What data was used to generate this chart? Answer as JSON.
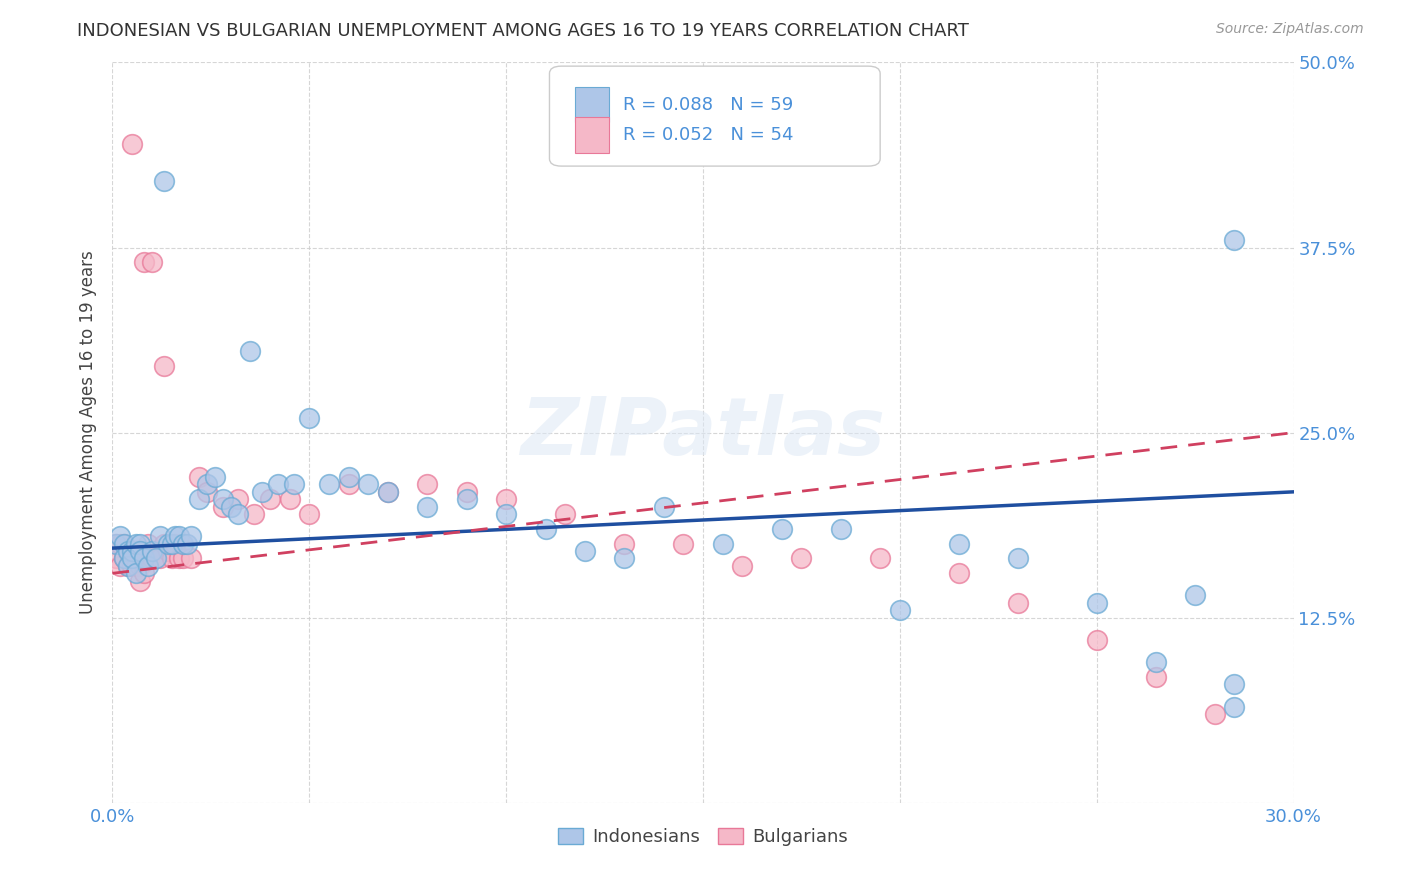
{
  "title": "INDONESIAN VS BULGARIAN UNEMPLOYMENT AMONG AGES 16 TO 19 YEARS CORRELATION CHART",
  "source": "Source: ZipAtlas.com",
  "ylabel": "Unemployment Among Ages 16 to 19 years",
  "xlim": [
    0.0,
    0.3
  ],
  "ylim": [
    0.0,
    0.5
  ],
  "xticks": [
    0.0,
    0.05,
    0.1,
    0.15,
    0.2,
    0.25,
    0.3
  ],
  "xtick_labels": [
    "0.0%",
    "",
    "",
    "",
    "",
    "",
    "30.0%"
  ],
  "yticks": [
    0.0,
    0.125,
    0.25,
    0.375,
    0.5
  ],
  "ytick_labels": [
    "",
    "12.5%",
    "25.0%",
    "37.5%",
    "50.0%"
  ],
  "indonesian_color": "#aec6e8",
  "indonesian_edge": "#6aaad4",
  "bulgarian_color": "#f5b8c8",
  "bulgarian_edge": "#e87898",
  "indonesian_line_color": "#1f4fa0",
  "bulgarian_line_color": "#d04060",
  "tick_label_color": "#4a90d9",
  "grid_color": "#cccccc",
  "legend_r_indo": "0.088",
  "legend_n_indo": "59",
  "legend_r_bulg": "0.052",
  "legend_n_bulg": "54",
  "indo_line_start_y": 0.172,
  "indo_line_end_y": 0.21,
  "bulg_line_start_y": 0.155,
  "bulg_line_end_y": 0.25,
  "indo_x": [
    0.001,
    0.002,
    0.003,
    0.003,
    0.004,
    0.004,
    0.005,
    0.005,
    0.006,
    0.006,
    0.007,
    0.007,
    0.008,
    0.009,
    0.01,
    0.011,
    0.012,
    0.013,
    0.014,
    0.015,
    0.016,
    0.017,
    0.018,
    0.019,
    0.02,
    0.022,
    0.024,
    0.026,
    0.028,
    0.03,
    0.032,
    0.035,
    0.038,
    0.042,
    0.046,
    0.05,
    0.055,
    0.06,
    0.065,
    0.07,
    0.08,
    0.09,
    0.1,
    0.11,
    0.12,
    0.13,
    0.14,
    0.155,
    0.17,
    0.185,
    0.2,
    0.215,
    0.23,
    0.25,
    0.265,
    0.275,
    0.285,
    0.285,
    0.285
  ],
  "indo_y": [
    0.175,
    0.18,
    0.175,
    0.165,
    0.17,
    0.16,
    0.17,
    0.165,
    0.175,
    0.155,
    0.175,
    0.17,
    0.165,
    0.16,
    0.17,
    0.165,
    0.18,
    0.42,
    0.175,
    0.175,
    0.18,
    0.18,
    0.175,
    0.175,
    0.18,
    0.205,
    0.215,
    0.22,
    0.205,
    0.2,
    0.195,
    0.305,
    0.21,
    0.215,
    0.215,
    0.26,
    0.215,
    0.22,
    0.215,
    0.21,
    0.2,
    0.205,
    0.195,
    0.185,
    0.17,
    0.165,
    0.2,
    0.175,
    0.185,
    0.185,
    0.13,
    0.175,
    0.165,
    0.135,
    0.095,
    0.14,
    0.38,
    0.08,
    0.065
  ],
  "bulg_x": [
    0.001,
    0.001,
    0.002,
    0.002,
    0.003,
    0.003,
    0.004,
    0.004,
    0.005,
    0.005,
    0.006,
    0.006,
    0.007,
    0.007,
    0.008,
    0.009,
    0.01,
    0.011,
    0.012,
    0.013,
    0.014,
    0.015,
    0.016,
    0.017,
    0.018,
    0.02,
    0.022,
    0.024,
    0.028,
    0.032,
    0.036,
    0.04,
    0.045,
    0.05,
    0.06,
    0.07,
    0.08,
    0.09,
    0.1,
    0.115,
    0.13,
    0.145,
    0.16,
    0.175,
    0.195,
    0.215,
    0.23,
    0.25,
    0.265,
    0.28,
    0.005,
    0.008,
    0.01,
    0.013
  ],
  "bulg_y": [
    0.175,
    0.165,
    0.175,
    0.16,
    0.175,
    0.165,
    0.17,
    0.16,
    0.16,
    0.165,
    0.16,
    0.17,
    0.16,
    0.15,
    0.155,
    0.175,
    0.165,
    0.165,
    0.165,
    0.175,
    0.17,
    0.165,
    0.175,
    0.165,
    0.165,
    0.165,
    0.22,
    0.21,
    0.2,
    0.205,
    0.195,
    0.205,
    0.205,
    0.195,
    0.215,
    0.21,
    0.215,
    0.21,
    0.205,
    0.195,
    0.175,
    0.175,
    0.16,
    0.165,
    0.165,
    0.155,
    0.135,
    0.11,
    0.085,
    0.06,
    0.445,
    0.365,
    0.365,
    0.295
  ]
}
